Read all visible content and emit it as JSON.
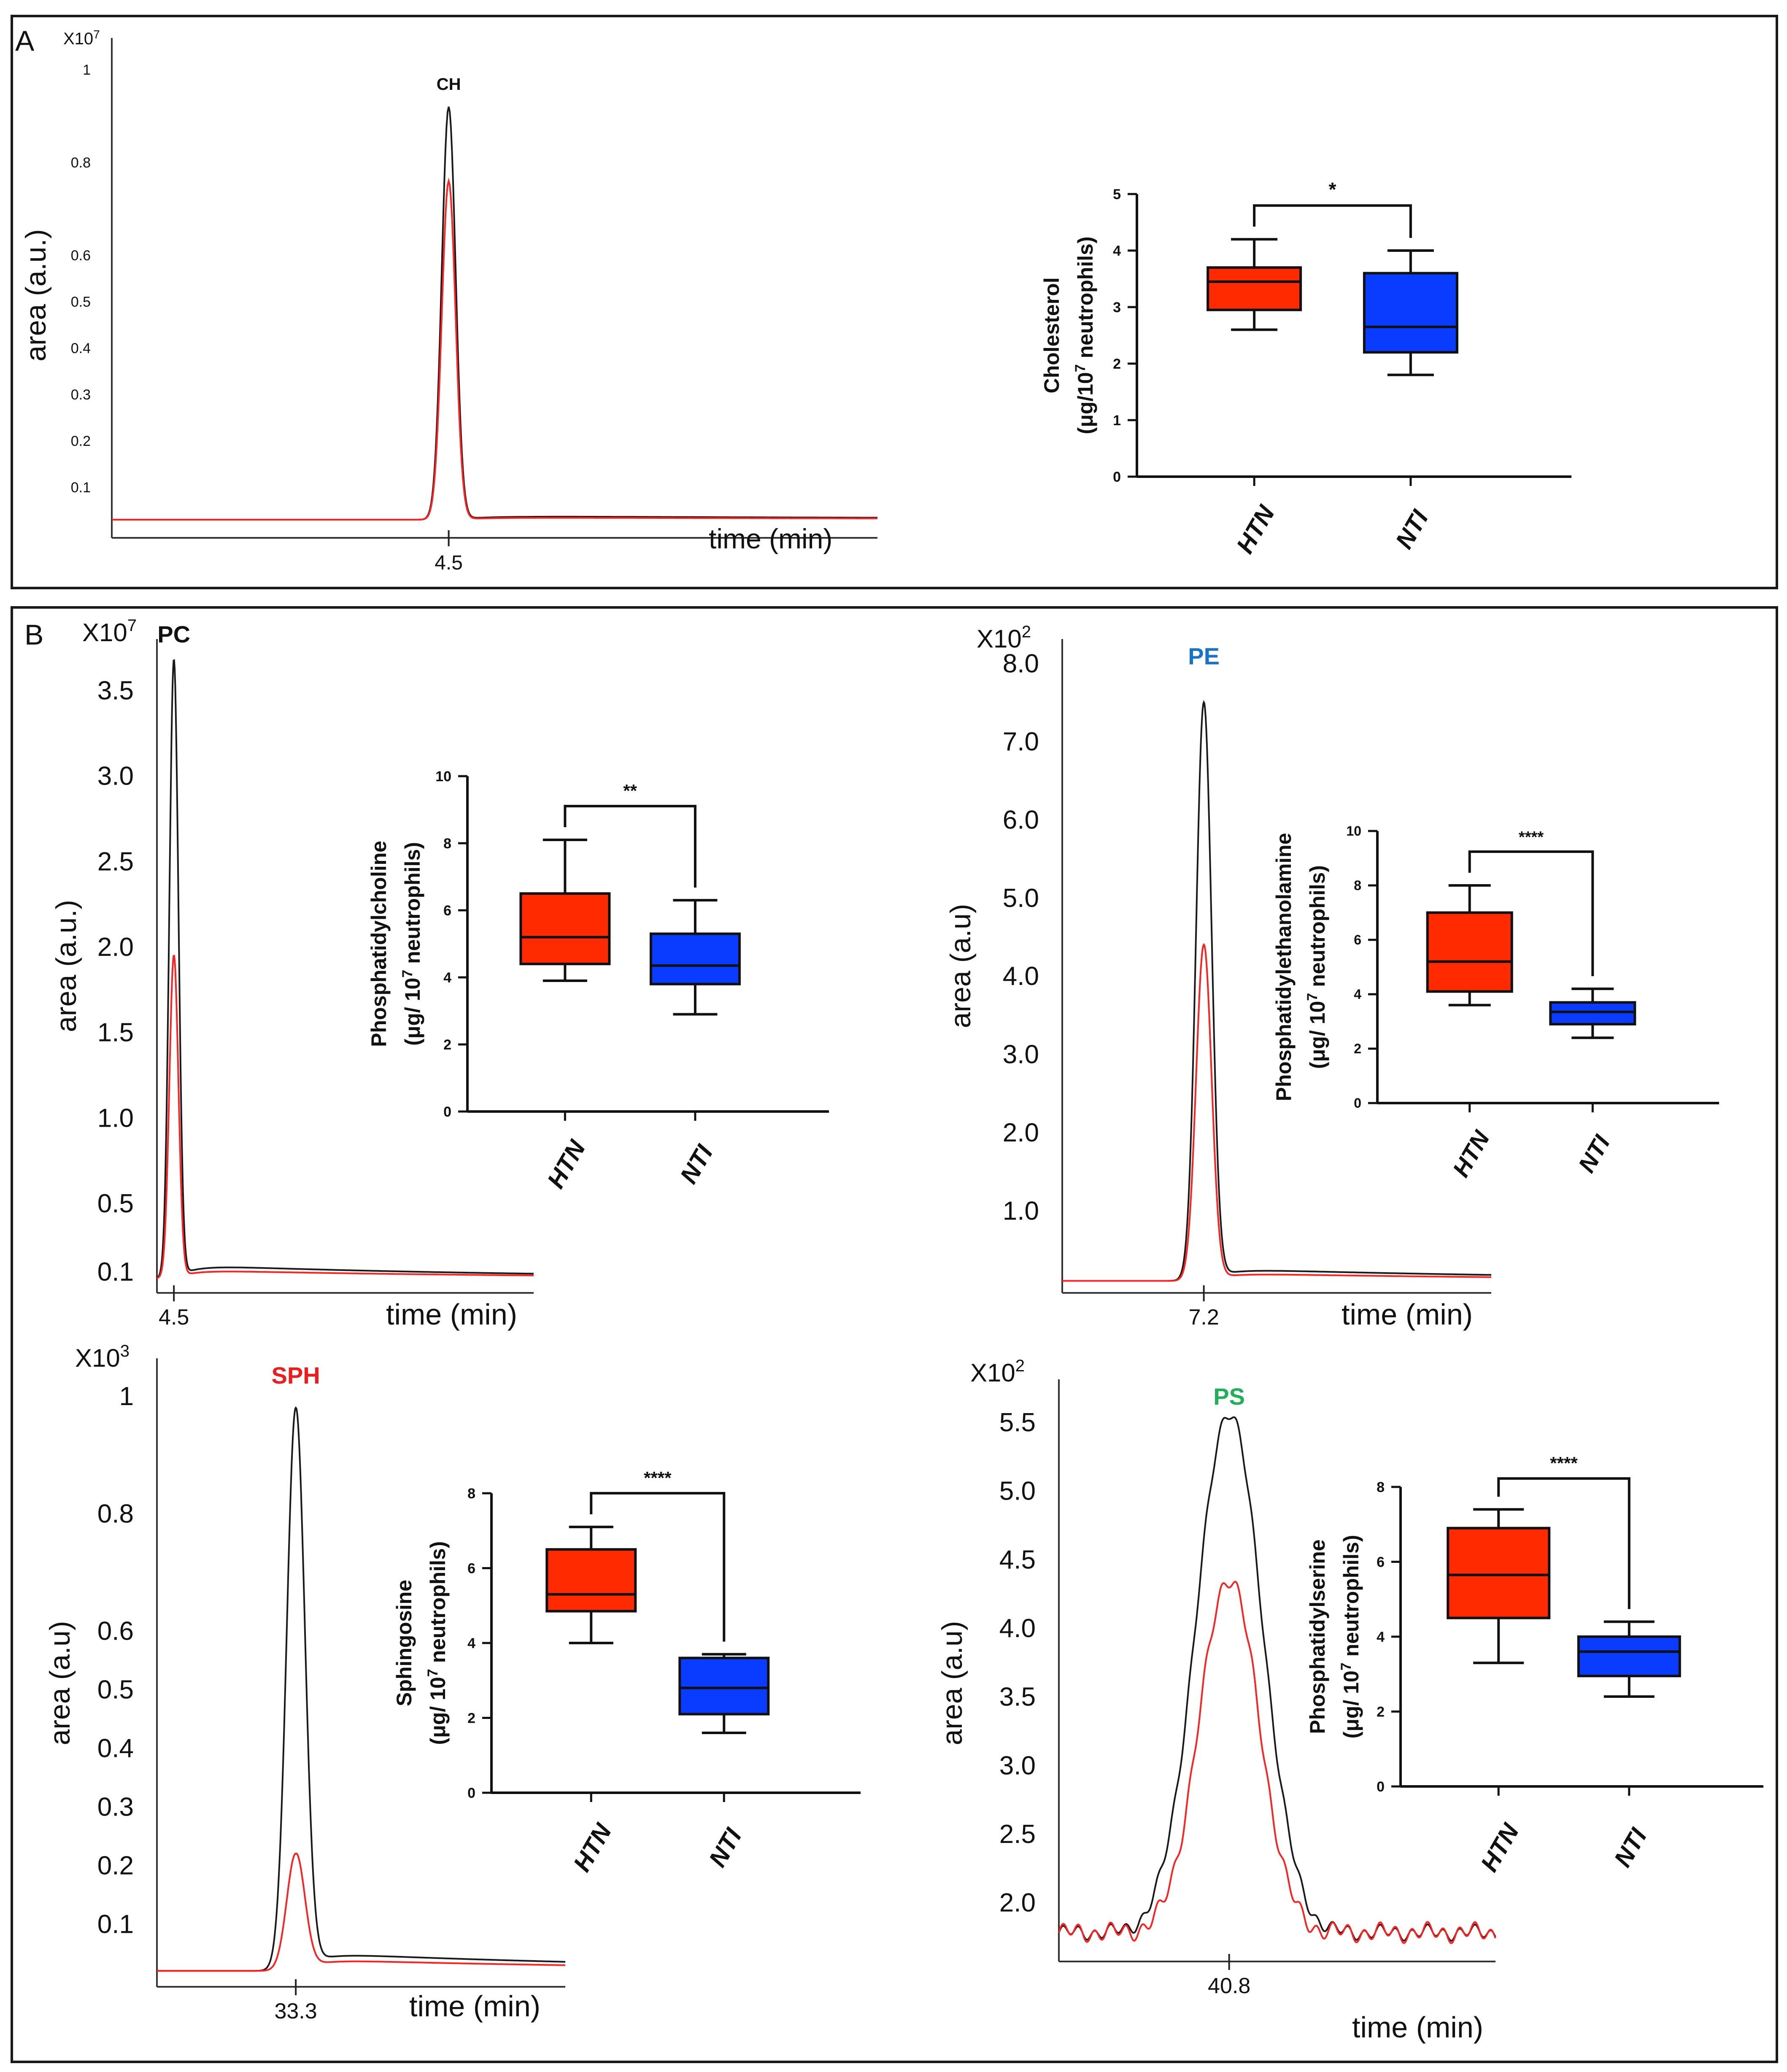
{
  "panels": {
    "A": {
      "letter": "A"
    },
    "B": {
      "letter": "B"
    }
  },
  "colors": {
    "htn": "#ff2a00",
    "nti": "#0a3cff",
    "trace_black": "#1a1a1a",
    "trace_red": "#ff2020",
    "title_pe": "#1a73c9",
    "title_sph": "#ee1c1c",
    "title_ps": "#1fb05a",
    "title_dark": "#111111"
  },
  "chart_data": [
    {
      "id": "ch-chrom",
      "type": "line",
      "title": "CH",
      "multiplier": "X10",
      "multiplier_exp": "7",
      "ylabel": "area (a.u.)",
      "xlabel": "time (min)",
      "peak_label": "4.5",
      "ylim": [
        0,
        1.05
      ],
      "yticks": [
        "0.1",
        "0.2",
        "0.3",
        "0.4",
        "0.5",
        "0.6",
        "0.8",
        "1"
      ],
      "baseline": 0.03,
      "tail": 0.005,
      "series": [
        {
          "name": "black",
          "peak": 0.92,
          "sigma": 0.009
        },
        {
          "name": "red",
          "peak": 0.76,
          "sigma": 0.009
        }
      ]
    },
    {
      "id": "ch-box",
      "type": "box",
      "ylabel_line1": "Cholesterol",
      "ylabel_line2_pre": "(μg/10",
      "ylabel_line2_exp": "7",
      "ylabel_line2_post": " neutrophils)",
      "ylim": [
        0,
        5
      ],
      "yticks": [
        "0",
        "1",
        "2",
        "3",
        "4",
        "5"
      ],
      "categories": [
        "HTN",
        "NTI"
      ],
      "groups": [
        {
          "name": "HTN",
          "min": 2.6,
          "q1": 2.95,
          "median": 3.45,
          "q3": 3.7,
          "max": 4.2
        },
        {
          "name": "NTI",
          "min": 1.8,
          "q1": 2.2,
          "median": 2.65,
          "q3": 3.6,
          "max": 4.0
        }
      ],
      "significance": "*"
    },
    {
      "id": "pc-chrom",
      "type": "line",
      "title": "PC",
      "multiplier": "X10",
      "multiplier_exp": "7",
      "ylabel": "area (a.u.)",
      "xlabel": "time (min)",
      "peak_label": "4.5",
      "ylim": [
        0,
        3.75
      ],
      "yticks": [
        "0.1",
        "0.5",
        "1.0",
        "1.5",
        "2.0",
        "2.5",
        "3.0",
        "3.5"
      ],
      "baseline": 0.06,
      "tail": 0.05,
      "series": [
        {
          "name": "black",
          "peak": 3.68,
          "sigma": 0.012
        },
        {
          "name": "red",
          "peak": 1.95,
          "sigma": 0.012
        }
      ]
    },
    {
      "id": "pc-box",
      "type": "box",
      "ylabel_line1": "Phosphatidylcholine",
      "ylabel_line2_pre": "(μg/ 10",
      "ylabel_line2_exp": "7",
      "ylabel_line2_post": " neutrophils)",
      "ylim": [
        0,
        10
      ],
      "yticks": [
        "0",
        "2",
        "4",
        "6",
        "8",
        "10"
      ],
      "categories": [
        "HTN",
        "NTI"
      ],
      "groups": [
        {
          "name": "HTN",
          "min": 3.9,
          "q1": 4.4,
          "median": 5.2,
          "q3": 6.5,
          "max": 8.1
        },
        {
          "name": "NTI",
          "min": 2.9,
          "q1": 3.8,
          "median": 4.35,
          "q3": 5.3,
          "max": 6.3
        }
      ],
      "significance": "**"
    },
    {
      "id": "pe-chrom",
      "type": "line",
      "title": "PE",
      "multiplier": "X10",
      "multiplier_exp": "2",
      "ylabel": "area (a.u)",
      "xlabel": "time  (min)",
      "peak_label": "7.2",
      "ylim": [
        0,
        8.2
      ],
      "yticks": [
        "1.0",
        "2.0",
        "3.0",
        "4.0",
        "5.0",
        "6.0",
        "7.0",
        "8.0"
      ],
      "baseline": 0.1,
      "tail": 0.1,
      "series": [
        {
          "name": "black",
          "peak": 7.5,
          "sigma": 0.018
        },
        {
          "name": "red",
          "peak": 4.4,
          "sigma": 0.018
        }
      ]
    },
    {
      "id": "pe-box",
      "type": "box",
      "ylabel_line1": "Phosphatidylethanolamine",
      "ylabel_line2_pre": "(μg/ 10",
      "ylabel_line2_exp": "7",
      "ylabel_line2_post": " neutrophils)",
      "ylim": [
        0,
        10
      ],
      "yticks": [
        "0",
        "2",
        "4",
        "6",
        "8",
        "10"
      ],
      "categories": [
        "HTN",
        "NTI"
      ],
      "groups": [
        {
          "name": "HTN",
          "min": 3.6,
          "q1": 4.1,
          "median": 5.2,
          "q3": 7.0,
          "max": 8.0
        },
        {
          "name": "NTI",
          "min": 2.4,
          "q1": 2.9,
          "median": 3.35,
          "q3": 3.7,
          "max": 4.2
        }
      ],
      "significance": "****"
    },
    {
      "id": "sph-chrom",
      "type": "line",
      "title": "SPH",
      "multiplier": "X10",
      "multiplier_exp": "3",
      "ylabel": "area (a.u)",
      "xlabel": "time (min)",
      "peak_label": "33.3",
      "ylim": [
        0,
        1.05
      ],
      "yticks": [
        "0.1",
        "0.2",
        "0.3",
        "0.4",
        "0.5",
        "0.6",
        "0.8",
        "1"
      ],
      "baseline": 0.02,
      "tail": 0.02,
      "series": [
        {
          "name": "black",
          "peak": 0.98,
          "sigma": 0.022
        },
        {
          "name": "red",
          "peak": 0.22,
          "sigma": 0.022
        }
      ]
    },
    {
      "id": "sph-box",
      "type": "box",
      "ylabel_line1": "Sphingosine",
      "ylabel_line2_pre": "(μg/ 10",
      "ylabel_line2_exp": "7",
      "ylabel_line2_post": " neutrophils)",
      "ylim": [
        0,
        8
      ],
      "yticks": [
        "0",
        "2",
        "4",
        "6",
        "8"
      ],
      "categories": [
        "HTN",
        "NTI"
      ],
      "groups": [
        {
          "name": "HTN",
          "min": 4.0,
          "q1": 4.85,
          "median": 5.3,
          "q3": 6.5,
          "max": 7.1
        },
        {
          "name": "NTI",
          "min": 1.6,
          "q1": 2.1,
          "median": 2.8,
          "q3": 3.6,
          "max": 3.7
        }
      ],
      "significance": "****"
    },
    {
      "id": "ps-chrom",
      "type": "line",
      "title": "PS",
      "multiplier": "X10",
      "multiplier_exp": "2",
      "ylabel": "area (a.u)",
      "xlabel": "time (min)",
      "peak_label": "40.8",
      "ylim": [
        1.6,
        5.75
      ],
      "yticks": [
        "2.0",
        "2.5",
        "3.0",
        "3.5",
        "4.0",
        "4.5",
        "5.0",
        "5.5"
      ],
      "baseline": 1.78,
      "tail": 0.0,
      "series": [
        {
          "name": "black",
          "peak": 5.58,
          "sigma": 0.075
        },
        {
          "name": "red",
          "peak": 4.37,
          "sigma": 0.068
        }
      ]
    },
    {
      "id": "ps-box",
      "type": "box",
      "ylabel_line1": "Phosphatidylserine",
      "ylabel_line2_pre": "(μg/ 10",
      "ylabel_line2_exp": "7",
      "ylabel_line2_post": " neutrophils)",
      "ylim": [
        0,
        8
      ],
      "yticks": [
        "0",
        "2",
        "4",
        "6",
        "8"
      ],
      "categories": [
        "HTN",
        "NTI"
      ],
      "groups": [
        {
          "name": "HTN",
          "min": 3.3,
          "q1": 4.5,
          "median": 5.65,
          "q3": 6.9,
          "max": 7.4
        },
        {
          "name": "NTI",
          "min": 2.4,
          "q1": 2.95,
          "median": 3.6,
          "q3": 4.0,
          "max": 4.4
        }
      ],
      "significance": "****"
    }
  ]
}
